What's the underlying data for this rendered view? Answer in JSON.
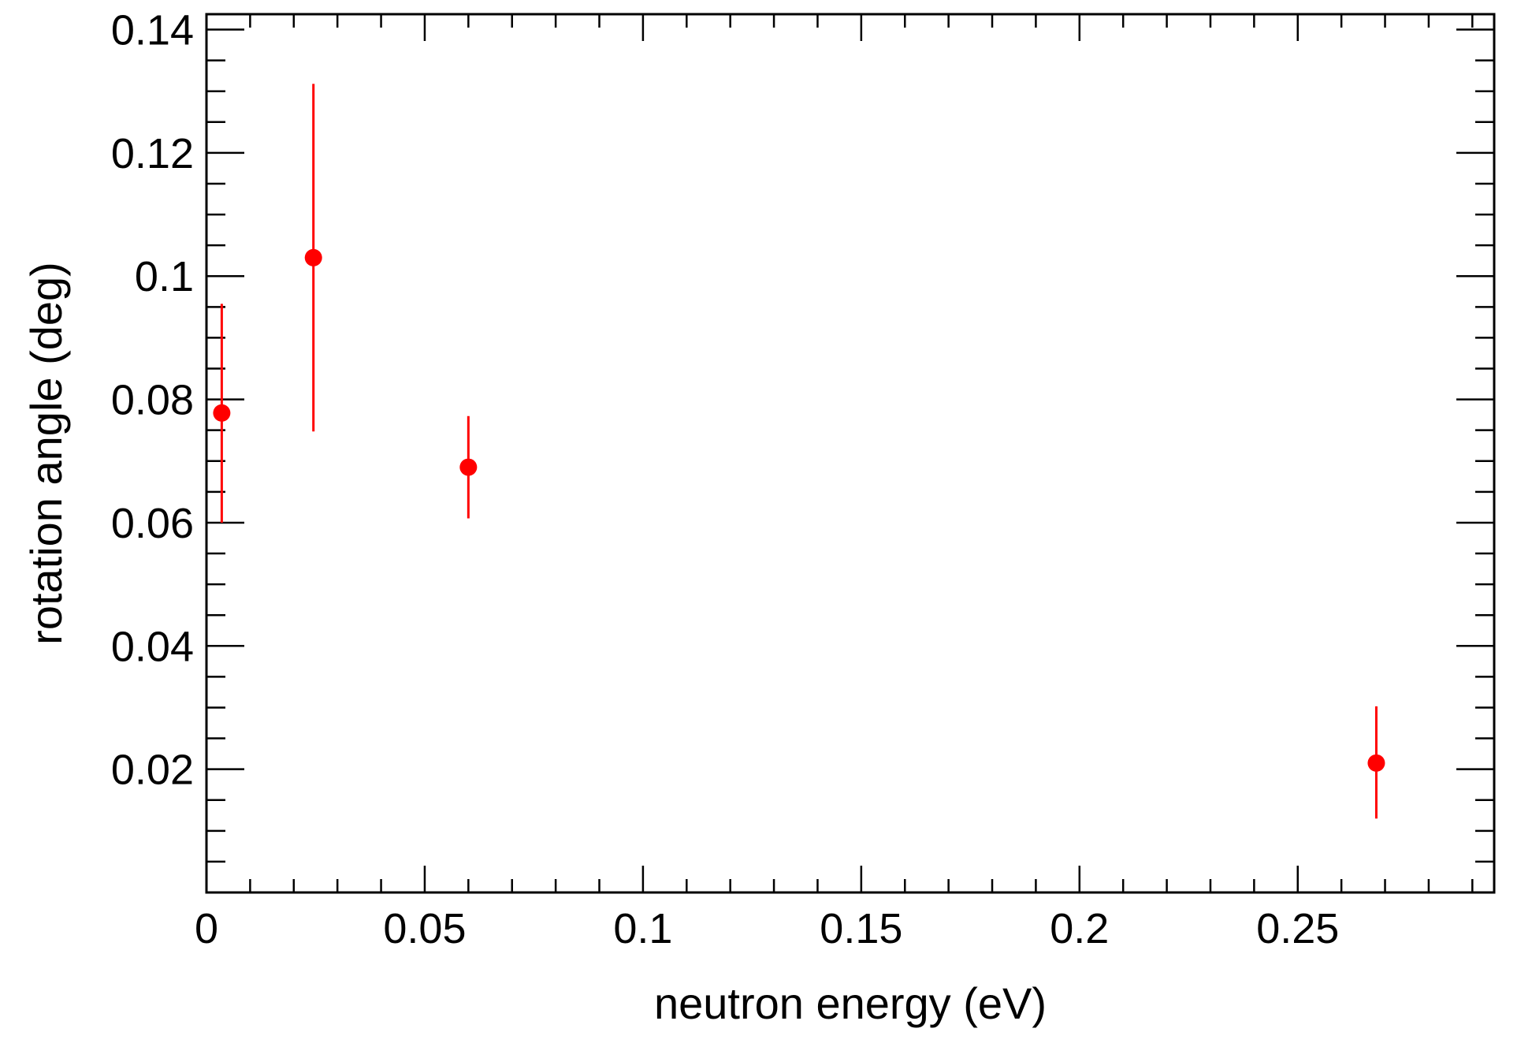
{
  "chart_data": {
    "type": "scatter",
    "title": "",
    "xlabel": "neutron energy (eV)",
    "ylabel": "rotation angle (deg)",
    "xlim": [
      0,
      0.295
    ],
    "ylim": [
      0,
      0.1425
    ],
    "x_ticks": [
      0,
      0.05,
      0.1,
      0.15,
      0.2,
      0.25
    ],
    "x_tick_labels": [
      "0",
      "0.05",
      "0.1",
      "0.15",
      "0.2",
      "0.25"
    ],
    "y_ticks": [
      0.02,
      0.04,
      0.06,
      0.08,
      0.1,
      0.12,
      0.14
    ],
    "y_tick_labels": [
      "0.02",
      "0.04",
      "0.06",
      "0.08",
      "0.1",
      "0.12",
      "0.14"
    ],
    "grid": false,
    "marker_color": "#ff0000",
    "series": [
      {
        "points": [
          {
            "x": 0.0035,
            "y": 0.0778,
            "yerr_low": 0.06,
            "yerr_high": 0.0955
          },
          {
            "x": 0.0245,
            "y": 0.103,
            "yerr_low": 0.0748,
            "yerr_high": 0.1312
          },
          {
            "x": 0.06,
            "y": 0.069,
            "yerr_low": 0.0607,
            "yerr_high": 0.0773
          },
          {
            "x": 0.268,
            "y": 0.021,
            "yerr_low": 0.012,
            "yerr_high": 0.0302
          }
        ]
      }
    ]
  }
}
